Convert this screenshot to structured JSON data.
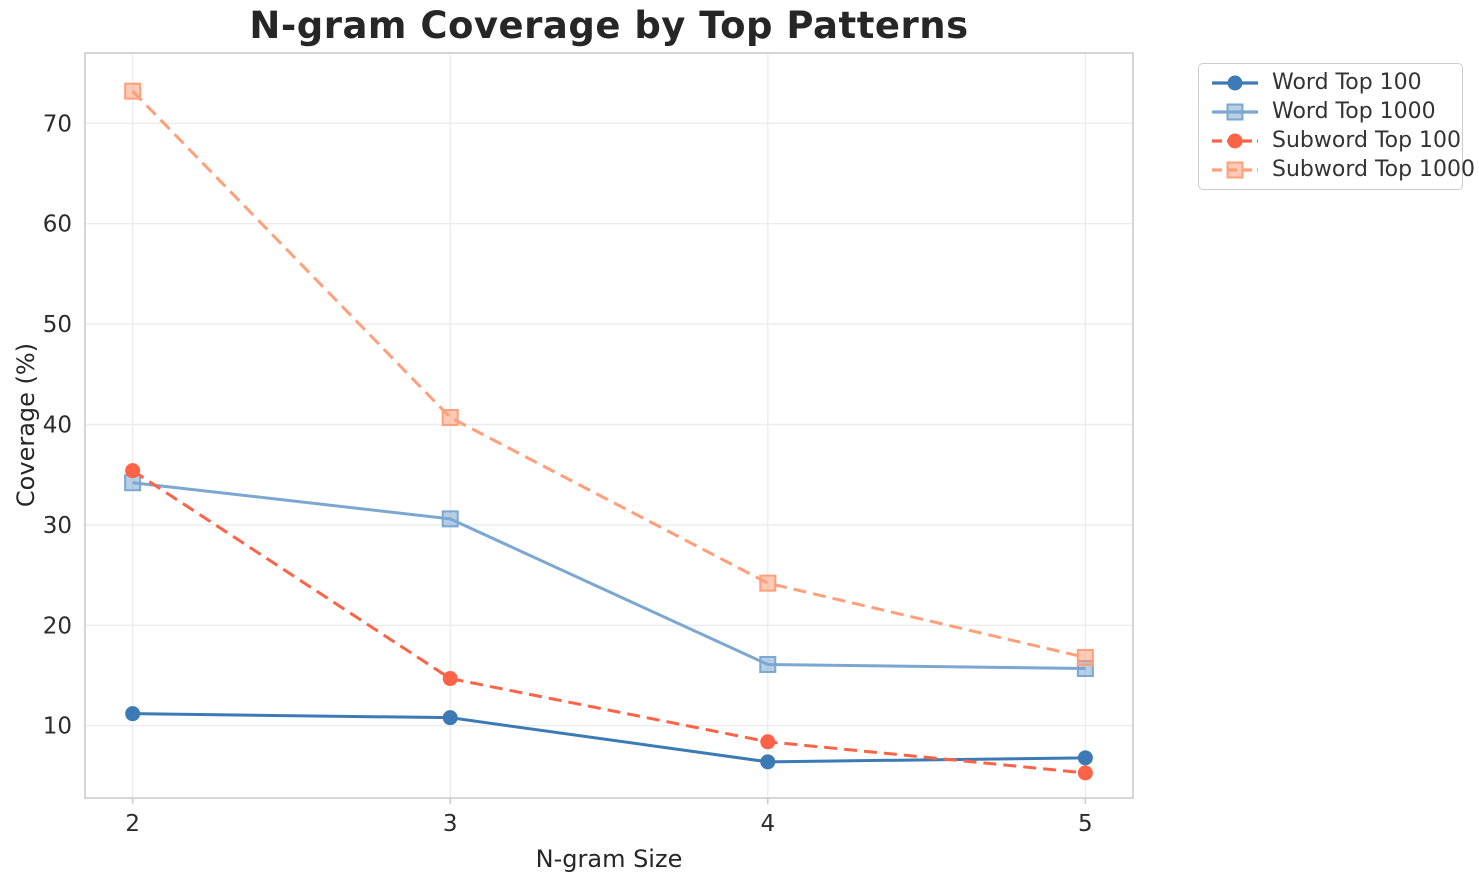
{
  "chart_data": {
    "type": "line",
    "title": "N-gram Coverage by Top Patterns",
    "xlabel": "N-gram Size",
    "ylabel": "Coverage (%)",
    "x": [
      2,
      3,
      4,
      5
    ],
    "xticks": [
      2,
      3,
      4,
      5
    ],
    "yticks": [
      10,
      20,
      30,
      40,
      50,
      60,
      70
    ],
    "xlim": [
      1.85,
      5.15
    ],
    "ylim": [
      2.8,
      77
    ],
    "grid": true,
    "legend_position": "outside-top-right",
    "series": [
      {
        "name": "Word Top 100",
        "values": [
          11.2,
          10.8,
          6.4,
          6.8
        ],
        "color": "#3c7ab5",
        "line_style": "solid",
        "marker": "circle"
      },
      {
        "name": "Word Top 1000",
        "values": [
          34.2,
          30.6,
          16.1,
          15.7
        ],
        "color": "#7ba7d1",
        "line_style": "solid",
        "marker": "square"
      },
      {
        "name": "Subword Top 100",
        "values": [
          35.4,
          14.7,
          8.4,
          5.3
        ],
        "color": "#ff6347",
        "line_style": "dashed",
        "marker": "circle"
      },
      {
        "name": "Subword Top 1000",
        "values": [
          73.2,
          40.7,
          24.2,
          16.8
        ],
        "color": "#ffa07a",
        "line_style": "dashed",
        "marker": "square"
      }
    ],
    "colors": {
      "grid": "#ececec",
      "spine": "#cccccc",
      "tick_text": "#2b2b2b",
      "title_text": "#262626",
      "legend_text": "#333333",
      "background": "#ffffff"
    }
  }
}
